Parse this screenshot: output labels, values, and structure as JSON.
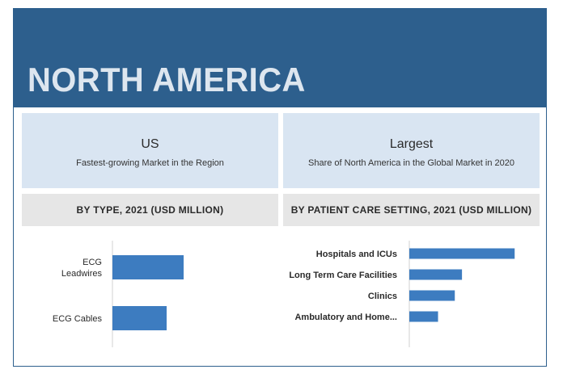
{
  "banner": {
    "title": "NORTH AMERICA"
  },
  "cards": [
    {
      "headline": "US",
      "subtitle": "Fastest-growing Market in the Region"
    },
    {
      "headline": "Largest",
      "subtitle": "Share of North America in the Global Market in 2020"
    }
  ],
  "colors": {
    "banner": "#2d5f8d",
    "bar": "#3d7cc0",
    "card": "#d9e5f2",
    "band": "#e6e6e6"
  },
  "chart_data": [
    {
      "type": "bar",
      "orientation": "horizontal",
      "title": "BY TYPE, 2021 (USD MILLION)",
      "categories": [
        "ECG\nLeadwires",
        "ECG Cables"
      ],
      "values": [
        88,
        67
      ],
      "xlim": [
        0,
        100
      ]
    },
    {
      "type": "bar",
      "orientation": "horizontal",
      "title": "BY PATIENT CARE SETTING, 2021 (USD MILLION)",
      "categories": [
        "Hospitals and ICUs",
        "Long Term Care Facilities",
        "Clinics",
        "Ambulatory and Home..."
      ],
      "values": [
        132,
        66,
        57,
        36
      ],
      "xlim": [
        0,
        150
      ]
    }
  ]
}
